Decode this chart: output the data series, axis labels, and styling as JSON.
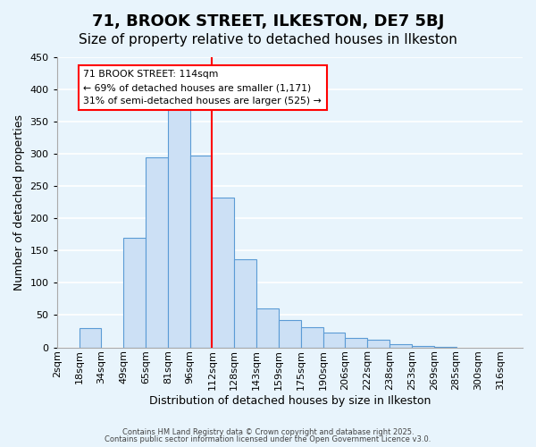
{
  "title": "71, BROOK STREET, ILKESTON, DE7 5BJ",
  "subtitle": "Size of property relative to detached houses in Ilkeston",
  "xlabel": "Distribution of detached houses by size in Ilkeston",
  "ylabel": "Number of detached properties",
  "bin_labels": [
    "2sqm",
    "18sqm",
    "34sqm",
    "49sqm",
    "65sqm",
    "81sqm",
    "96sqm",
    "112sqm",
    "128sqm",
    "143sqm",
    "159sqm",
    "175sqm",
    "190sqm",
    "206sqm",
    "222sqm",
    "238sqm",
    "253sqm",
    "269sqm",
    "285sqm",
    "300sqm",
    "316sqm"
  ],
  "bar_values": [
    0,
    30,
    0,
    170,
    295,
    370,
    298,
    232,
    137,
    61,
    43,
    31,
    23,
    15,
    12,
    5,
    2,
    1,
    0,
    0,
    0
  ],
  "bar_color": "#cce0f5",
  "bar_edge_color": "#5b9bd5",
  "property_line_x": 7,
  "property_line_color": "red",
  "annotation_title": "71 BROOK STREET: 114sqm",
  "annotation_line1": "← 69% of detached houses are smaller (1,171)",
  "annotation_line2": "31% of semi-detached houses are larger (525) →",
  "annotation_box_color": "white",
  "annotation_box_edge_color": "red",
  "ylim": [
    0,
    450
  ],
  "footnote1": "Contains HM Land Registry data © Crown copyright and database right 2025.",
  "footnote2": "Contains public sector information licensed under the Open Government Licence v3.0.",
  "background_color": "#e8f4fc",
  "grid_color": "white",
  "title_fontsize": 13,
  "subtitle_fontsize": 11,
  "axis_label_fontsize": 9,
  "tick_fontsize": 8
}
